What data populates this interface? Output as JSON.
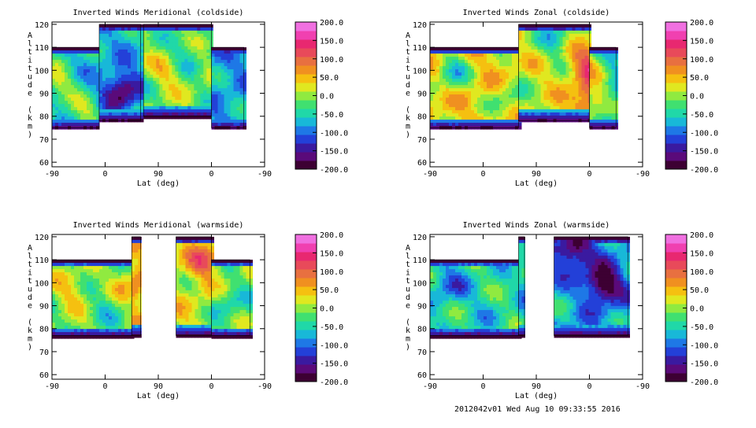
{
  "footer": "2012042v01 Wed Aug 10 09:33:55 2016",
  "colorbar": {
    "range": [
      -200,
      200
    ],
    "tick_labels": [
      "200.0",
      "150.0",
      "100.0",
      "50.0",
      "0.0",
      "-50.0",
      "-100.0",
      "-150.0",
      "-200.0"
    ],
    "colors": [
      "#3d0033",
      "#5a0a7a",
      "#3a1aa0",
      "#2340d8",
      "#1e78e6",
      "#18b8d8",
      "#20d8a8",
      "#40e070",
      "#90ea40",
      "#e0e820",
      "#f5c010",
      "#f09020",
      "#e87040",
      "#e84a5a",
      "#e82870",
      "#f040b0",
      "#f070e0"
    ]
  },
  "chart_data": [
    {
      "type": "heatmap",
      "title": "Inverted Winds Meridional (coldside)",
      "xlabel": "Lat (deg)",
      "ylabel": "Altitude (km)",
      "xticks": [
        "-90",
        "0",
        "90",
        "0",
        "-90"
      ],
      "yticks": [
        "60",
        "70",
        "80",
        "90",
        "100",
        "110",
        "120"
      ],
      "ylim": [
        58,
        121
      ],
      "seed": 11,
      "regions": [
        {
          "x": [
            -90,
            -10
          ],
          "y": [
            75,
            110
          ],
          "base": -60
        },
        {
          "x": [
            -10,
            60
          ],
          "y": [
            78,
            120
          ],
          "base": -70
        },
        {
          "x": [
            65,
            180
          ],
          "y": [
            80,
            120
          ],
          "base": -10
        },
        {
          "x": [
            180,
            235
          ],
          "y": [
            75,
            110
          ],
          "base": -80
        }
      ],
      "blobs": [
        {
          "x": -35,
          "y": 82,
          "v": 60
        },
        {
          "x": -85,
          "y": 95,
          "v": 70
        },
        {
          "x": 100,
          "y": 100,
          "v": 45
        },
        {
          "x": 25,
          "y": 92,
          "v": -120
        },
        {
          "x": 130,
          "y": 108,
          "v": -40
        }
      ]
    },
    {
      "type": "heatmap",
      "title": "Inverted Winds Zonal (coldside)",
      "xlabel": "Lat (deg)",
      "ylabel": "Altitude (km)",
      "xticks": [
        "-90",
        "0",
        "90",
        "0",
        "-90"
      ],
      "yticks": [
        "60",
        "70",
        "80",
        "90",
        "100",
        "110",
        "120"
      ],
      "ylim": [
        58,
        121
      ],
      "seed": 23,
      "regions": [
        {
          "x": [
            -90,
            60
          ],
          "y": [
            75,
            110
          ],
          "base": 40
        },
        {
          "x": [
            60,
            180
          ],
          "y": [
            78,
            120
          ],
          "base": 20
        },
        {
          "x": [
            180,
            225
          ],
          "y": [
            75,
            110
          ],
          "base": -60
        }
      ],
      "blobs": [
        {
          "x": 180,
          "y": 87,
          "v": 110
        },
        {
          "x": 175,
          "y": 103,
          "v": 100
        },
        {
          "x": -55,
          "y": 100,
          "v": -90
        },
        {
          "x": 40,
          "y": 88,
          "v": -60
        },
        {
          "x": 120,
          "y": 115,
          "v": -80
        }
      ]
    },
    {
      "type": "heatmap",
      "title": "Inverted Winds Meridional (warmside)",
      "xlabel": "Lat (deg)",
      "ylabel": "Altitude (km)",
      "xticks": [
        "-90",
        "0",
        "90",
        "0",
        "-90"
      ],
      "yticks": [
        "60",
        "70",
        "80",
        "90",
        "100",
        "110",
        "120"
      ],
      "ylim": [
        58,
        121
      ],
      "seed": 37,
      "regions": [
        {
          "x": [
            -90,
            45
          ],
          "y": [
            77,
            110
          ],
          "base": -10
        },
        {
          "x": 45,
          "y": [
            77,
            120
          ],
          "base": 30,
          "x2": 60
        },
        {
          "x": [
            120,
            180
          ],
          "y": [
            77,
            120
          ],
          "base": 20
        },
        {
          "x": [
            180,
            245
          ],
          "y": [
            77,
            110
          ],
          "base": -10
        }
      ],
      "blobs": [
        {
          "x": -60,
          "y": 98,
          "v": 50
        },
        {
          "x": 40,
          "y": 100,
          "v": 60
        },
        {
          "x": 165,
          "y": 110,
          "v": 80
        },
        {
          "x": 0,
          "y": 90,
          "v": -30
        },
        {
          "x": 210,
          "y": 90,
          "v": -40
        }
      ]
    },
    {
      "type": "heatmap",
      "title": "Inverted Winds Zonal (warmside)",
      "xlabel": "Lat (deg)",
      "ylabel": "Altitude (km)",
      "xticks": [
        "-90",
        "0",
        "90",
        "0",
        "-90"
      ],
      "yticks": [
        "60",
        "70",
        "80",
        "90",
        "100",
        "110",
        "120"
      ],
      "ylim": [
        58,
        121
      ],
      "seed": 51,
      "regions": [
        {
          "x": [
            -90,
            60
          ],
          "y": [
            77,
            110
          ],
          "base": -40
        },
        {
          "x": [
            60,
            70
          ],
          "y": [
            77,
            120
          ],
          "base": -60
        },
        {
          "x": [
            120,
            245
          ],
          "y": [
            77,
            120
          ],
          "base": -80
        }
      ],
      "blobs": [
        {
          "x": 0,
          "y": 88,
          "v": -15
        },
        {
          "x": 135,
          "y": 92,
          "v": 20
        },
        {
          "x": 200,
          "y": 100,
          "v": -140
        },
        {
          "x": 150,
          "y": 115,
          "v": -120
        },
        {
          "x": -60,
          "y": 100,
          "v": -70
        }
      ]
    }
  ]
}
